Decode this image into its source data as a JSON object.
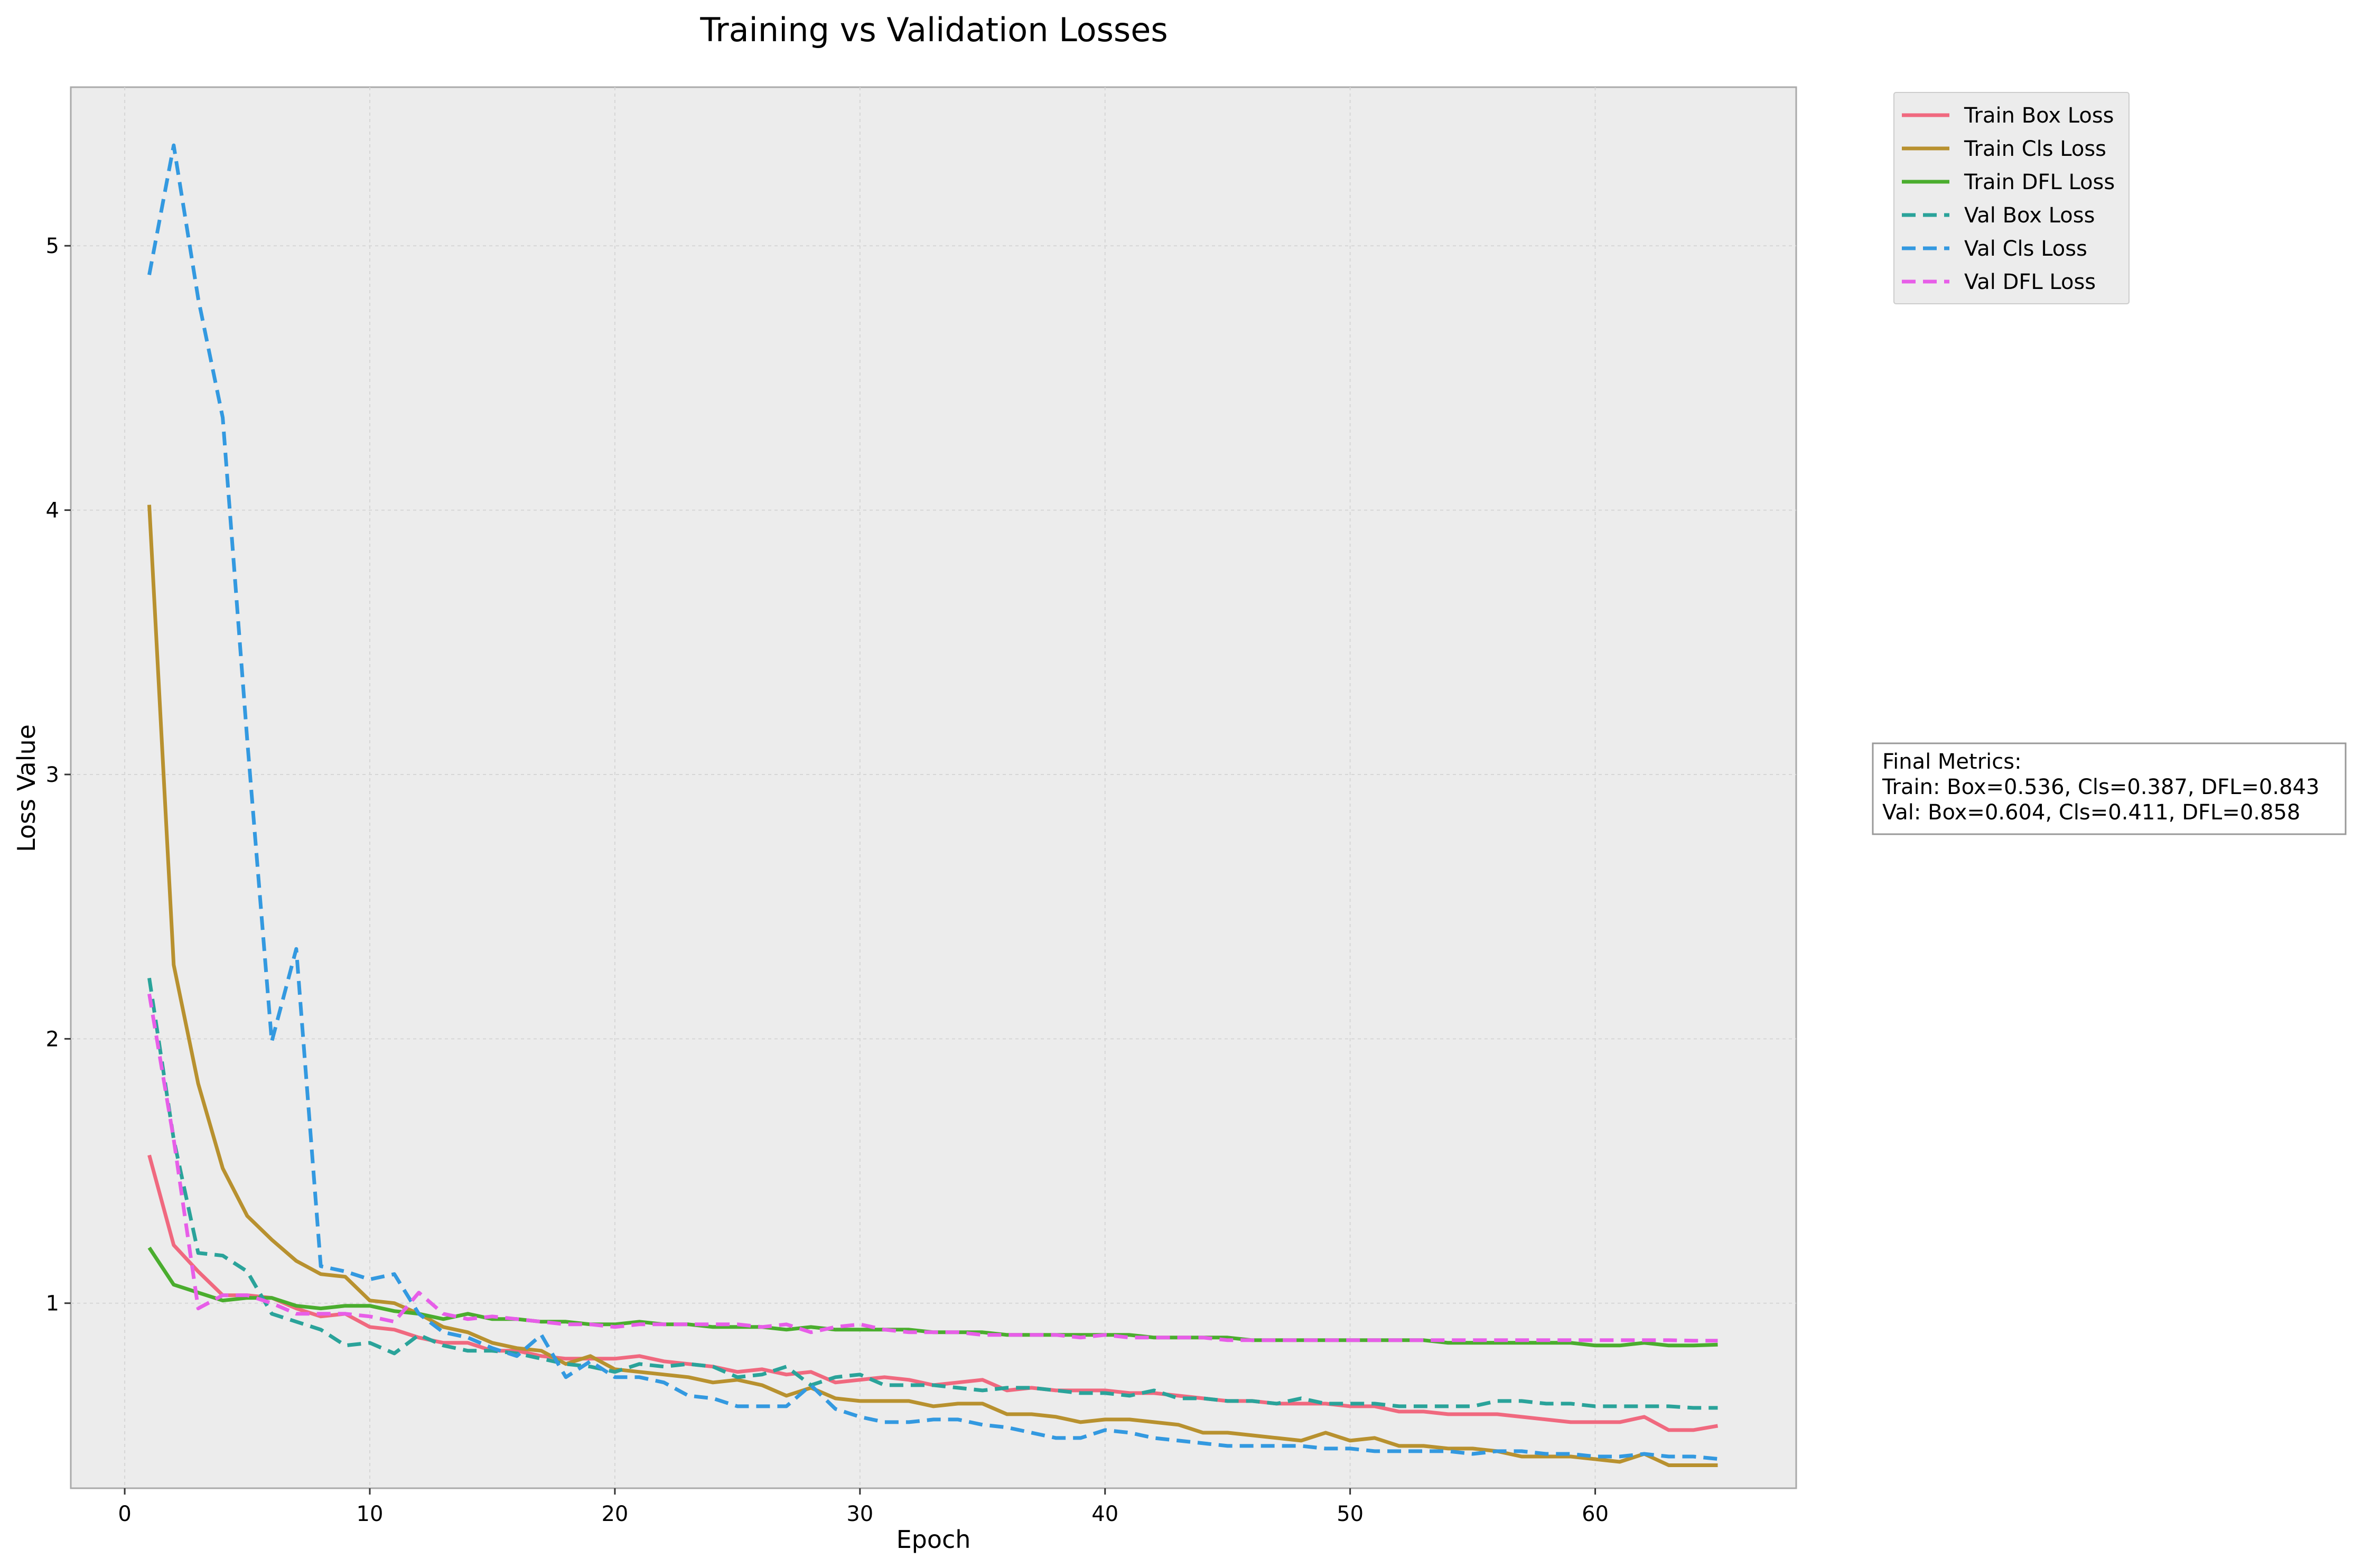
{
  "chart_data": {
    "type": "line",
    "title": "Training vs Validation Losses",
    "xlabel": "Epoch",
    "ylabel": "Loss Value",
    "xlim": [
      -2.2,
      68.2
    ],
    "ylim": [
      0.3,
      5.6
    ],
    "xticks": [
      0,
      10,
      20,
      30,
      40,
      50,
      60
    ],
    "yticks": [
      1,
      2,
      3,
      4,
      5
    ],
    "grid": true,
    "legend_position": "outside-top-right",
    "background": "#ececec",
    "x": [
      1,
      2,
      3,
      4,
      5,
      6,
      7,
      8,
      9,
      10,
      11,
      12,
      13,
      14,
      15,
      16,
      17,
      18,
      19,
      20,
      21,
      22,
      23,
      24,
      25,
      26,
      27,
      28,
      29,
      30,
      31,
      32,
      33,
      34,
      35,
      36,
      37,
      38,
      39,
      40,
      41,
      42,
      43,
      44,
      45,
      46,
      47,
      48,
      49,
      50,
      51,
      52,
      53,
      54,
      55,
      56,
      57,
      58,
      59,
      60,
      61,
      62,
      63,
      64,
      65
    ],
    "series": [
      {
        "name": "Train Box Loss",
        "color": "#f0697f",
        "dashed": false,
        "values": [
          1.56,
          1.22,
          1.12,
          1.03,
          1.03,
          1.02,
          0.98,
          0.95,
          0.96,
          0.91,
          0.9,
          0.87,
          0.85,
          0.85,
          0.82,
          0.82,
          0.8,
          0.79,
          0.79,
          0.79,
          0.8,
          0.78,
          0.77,
          0.76,
          0.74,
          0.75,
          0.73,
          0.74,
          0.7,
          0.71,
          0.72,
          0.71,
          0.69,
          0.7,
          0.71,
          0.67,
          0.68,
          0.67,
          0.67,
          0.67,
          0.66,
          0.66,
          0.65,
          0.64,
          0.63,
          0.63,
          0.62,
          0.62,
          0.62,
          0.61,
          0.61,
          0.59,
          0.59,
          0.58,
          0.58,
          0.58,
          0.57,
          0.56,
          0.55,
          0.55,
          0.55,
          0.57,
          0.52,
          0.52,
          0.536
        ]
      },
      {
        "name": "Train Cls Loss",
        "color": "#b8912f",
        "dashed": false,
        "values": [
          4.02,
          2.28,
          1.83,
          1.51,
          1.33,
          1.24,
          1.16,
          1.11,
          1.1,
          1.01,
          1.0,
          0.96,
          0.91,
          0.89,
          0.85,
          0.83,
          0.82,
          0.77,
          0.8,
          0.75,
          0.74,
          0.73,
          0.72,
          0.7,
          0.71,
          0.69,
          0.65,
          0.68,
          0.64,
          0.63,
          0.63,
          0.63,
          0.61,
          0.62,
          0.62,
          0.58,
          0.58,
          0.57,
          0.55,
          0.56,
          0.56,
          0.55,
          0.54,
          0.51,
          0.51,
          0.5,
          0.49,
          0.48,
          0.51,
          0.48,
          0.49,
          0.46,
          0.46,
          0.45,
          0.45,
          0.44,
          0.42,
          0.42,
          0.42,
          0.41,
          0.4,
          0.43,
          0.387,
          0.387,
          0.387
        ]
      },
      {
        "name": "Train DFL Loss",
        "color": "#4aad2e",
        "dashed": false,
        "values": [
          1.21,
          1.07,
          1.04,
          1.01,
          1.02,
          1.02,
          0.99,
          0.98,
          0.99,
          0.99,
          0.97,
          0.96,
          0.94,
          0.96,
          0.94,
          0.94,
          0.93,
          0.93,
          0.92,
          0.92,
          0.93,
          0.92,
          0.92,
          0.91,
          0.91,
          0.91,
          0.9,
          0.91,
          0.9,
          0.9,
          0.9,
          0.9,
          0.89,
          0.89,
          0.89,
          0.88,
          0.88,
          0.88,
          0.88,
          0.88,
          0.88,
          0.87,
          0.87,
          0.87,
          0.87,
          0.86,
          0.86,
          0.86,
          0.86,
          0.86,
          0.86,
          0.86,
          0.86,
          0.85,
          0.85,
          0.85,
          0.85,
          0.85,
          0.85,
          0.84,
          0.84,
          0.85,
          0.84,
          0.84,
          0.843
        ]
      },
      {
        "name": "Val Box Loss",
        "color": "#2aa39a",
        "dashed": true,
        "values": [
          2.23,
          1.62,
          1.19,
          1.18,
          1.12,
          0.96,
          0.93,
          0.9,
          0.84,
          0.85,
          0.81,
          0.88,
          0.84,
          0.82,
          0.82,
          0.81,
          0.79,
          0.77,
          0.76,
          0.74,
          0.77,
          0.76,
          0.77,
          0.76,
          0.72,
          0.73,
          0.76,
          0.69,
          0.72,
          0.73,
          0.69,
          0.69,
          0.69,
          0.68,
          0.67,
          0.68,
          0.68,
          0.67,
          0.66,
          0.66,
          0.65,
          0.67,
          0.64,
          0.64,
          0.63,
          0.63,
          0.62,
          0.64,
          0.62,
          0.62,
          0.62,
          0.61,
          0.61,
          0.61,
          0.61,
          0.63,
          0.63,
          0.62,
          0.62,
          0.61,
          0.61,
          0.61,
          0.61,
          0.604,
          0.604
        ]
      },
      {
        "name": "Val Cls Loss",
        "color": "#3399e0",
        "dashed": true,
        "values": [
          4.89,
          5.38,
          4.8,
          4.35,
          3.13,
          1.99,
          2.34,
          1.14,
          1.12,
          1.09,
          1.11,
          0.96,
          0.89,
          0.87,
          0.83,
          0.8,
          0.88,
          0.72,
          0.78,
          0.72,
          0.72,
          0.7,
          0.65,
          0.64,
          0.61,
          0.61,
          0.61,
          0.69,
          0.6,
          0.57,
          0.55,
          0.55,
          0.56,
          0.56,
          0.54,
          0.53,
          0.51,
          0.49,
          0.49,
          0.52,
          0.51,
          0.49,
          0.48,
          0.47,
          0.46,
          0.46,
          0.46,
          0.46,
          0.45,
          0.45,
          0.44,
          0.44,
          0.44,
          0.44,
          0.43,
          0.44,
          0.44,
          0.43,
          0.43,
          0.42,
          0.42,
          0.43,
          0.42,
          0.42,
          0.411
        ]
      },
      {
        "name": "Val DFL Loss",
        "color": "#e75ee8",
        "dashed": true,
        "values": [
          2.17,
          1.62,
          0.98,
          1.03,
          1.03,
          1.0,
          0.96,
          0.96,
          0.96,
          0.95,
          0.93,
          1.04,
          0.96,
          0.94,
          0.95,
          0.94,
          0.93,
          0.92,
          0.92,
          0.91,
          0.92,
          0.92,
          0.92,
          0.92,
          0.92,
          0.91,
          0.92,
          0.89,
          0.91,
          0.92,
          0.9,
          0.89,
          0.89,
          0.89,
          0.88,
          0.88,
          0.88,
          0.88,
          0.87,
          0.88,
          0.87,
          0.87,
          0.87,
          0.87,
          0.86,
          0.86,
          0.86,
          0.86,
          0.86,
          0.86,
          0.86,
          0.86,
          0.86,
          0.86,
          0.86,
          0.86,
          0.86,
          0.86,
          0.86,
          0.86,
          0.86,
          0.86,
          0.86,
          0.858,
          0.858
        ]
      }
    ]
  },
  "metrics_box": {
    "line1": "Final Metrics:",
    "line2": "Train: Box=0.536, Cls=0.387, DFL=0.843",
    "line3": "Val: Box=0.604, Cls=0.411, DFL=0.858"
  }
}
